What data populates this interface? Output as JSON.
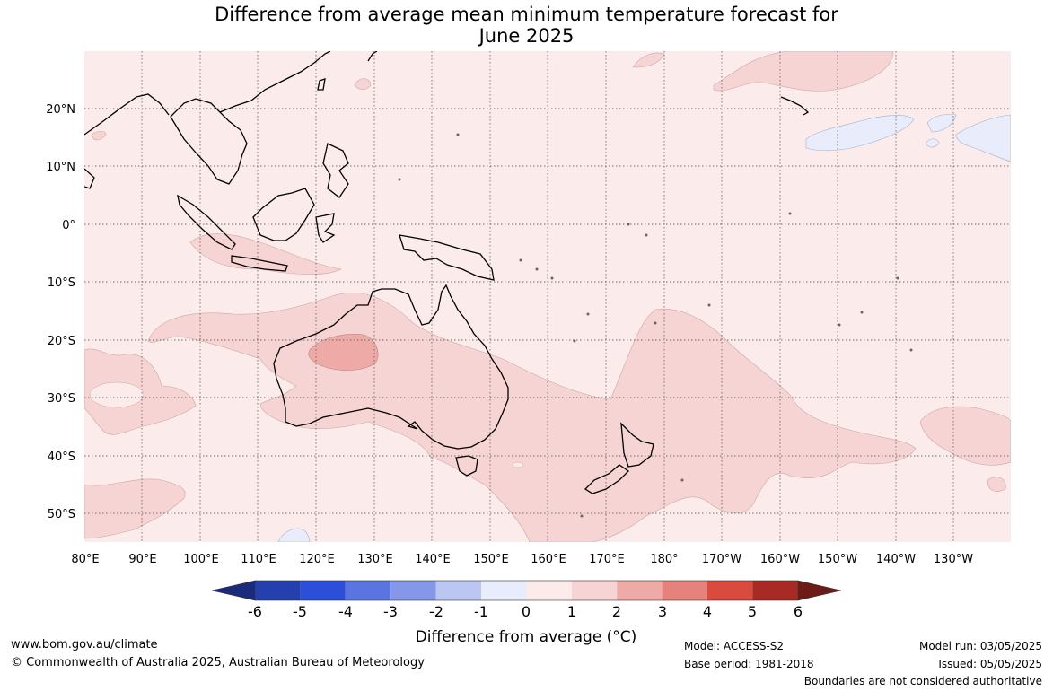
{
  "title_line1": "Difference from average mean minimum temperature forecast for",
  "title_line2": "June 2025",
  "lon_labels": [
    "80°E",
    "90°E",
    "100°E",
    "110°E",
    "120°E",
    "130°E",
    "140°E",
    "150°E",
    "160°E",
    "170°E",
    "180°",
    "170°W",
    "160°W",
    "150°W",
    "140°W",
    "130°W"
  ],
  "lat_labels": [
    "20°N",
    "10°N",
    "0°",
    "10°S",
    "20°S",
    "30°S",
    "40°S",
    "50°S"
  ],
  "colorbar": {
    "ticks": [
      "-6",
      "-5",
      "-4",
      "-3",
      "-2",
      "-1",
      "0",
      "1",
      "2",
      "3",
      "4",
      "5",
      "6"
    ],
    "colors": [
      "#1b2a7a",
      "#253fad",
      "#2d4ed8",
      "#5a74e0",
      "#8597e8",
      "#bcc6f2",
      "#e8ecfb",
      "#fbeceb",
      "#f6d4d3",
      "#edaaa6",
      "#e5827c",
      "#d94a3f",
      "#a82a24",
      "#6e1a16"
    ],
    "label": "Difference from average (°C)"
  },
  "footer": {
    "url": "www.bom.gov.au/climate",
    "copyright": "© Commonwealth of Australia 2025, Australian Bureau of Meteorology",
    "model": "Model: ACCESS-S2",
    "base_period": "Base period: 1981-2018",
    "model_run": "Model run: 03/05/2025",
    "issued": "Issued: 05/05/2025",
    "boundaries": "Boundaries are not considered authoritative"
  },
  "colors": {
    "background_anomaly": "#fbeceb",
    "warm_1_2": "#f6d4d3",
    "warm_2_3": "#edaaa6",
    "cool_0_m1": "#e8ecfb"
  }
}
